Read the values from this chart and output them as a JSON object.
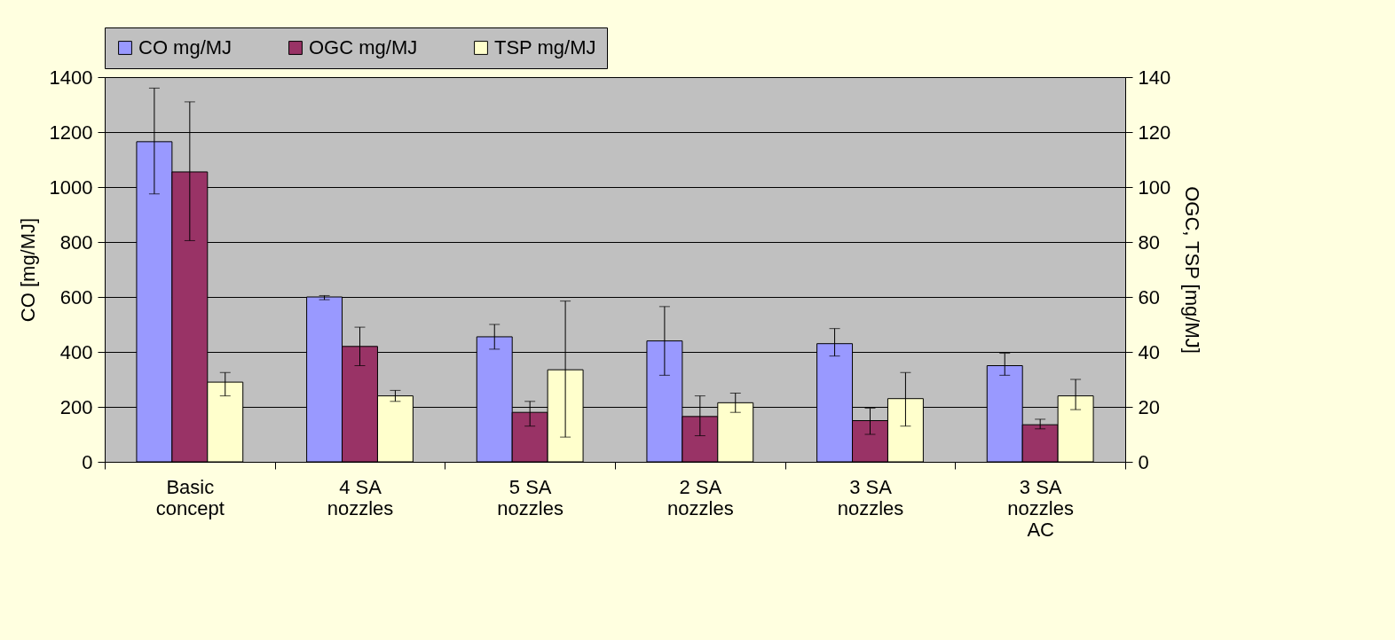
{
  "chart_data": {
    "type": "bar",
    "categories": [
      "Basic concept",
      "4 SA nozzles",
      "5 SA nozzles",
      "2 SA nozzles",
      "3 SA nozzles",
      "3 SA nozzles AC"
    ],
    "series": [
      {
        "name": "CO mg/MJ",
        "color": "#9999ff",
        "values": [
          1165,
          600,
          455,
          440,
          430,
          350
        ],
        "errors": [
          [
            975,
            1360
          ],
          [
            590,
            605
          ],
          [
            410,
            500
          ],
          [
            315,
            565
          ],
          [
            385,
            485
          ],
          [
            315,
            395
          ]
        ]
      },
      {
        "name": "OGC mg/MJ",
        "color": "#993366",
        "axis": "y2",
        "values": [
          105.5,
          42,
          18,
          16.5,
          15,
          13.5
        ],
        "errors": [
          [
            80.5,
            131
          ],
          [
            35,
            49
          ],
          [
            13,
            22
          ],
          [
            9.5,
            24
          ],
          [
            10,
            19.5
          ],
          [
            12,
            15.5
          ]
        ]
      },
      {
        "name": "TSP mg/MJ",
        "color": "#ffffcc",
        "axis": "y2",
        "values": [
          29,
          24,
          33.5,
          21.5,
          23,
          24
        ],
        "errors": [
          [
            24,
            32.5
          ],
          [
            22,
            26
          ],
          [
            9,
            58.5
          ],
          [
            18,
            25
          ],
          [
            13,
            32.5
          ],
          [
            19,
            30
          ]
        ]
      }
    ],
    "ylabel": "CO [mg/MJ]",
    "y2label": "OGC, TSP [mg/MJ]",
    "ylim": [
      0,
      1400
    ],
    "yticks": [
      0,
      200,
      400,
      600,
      800,
      1000,
      1200,
      1400
    ],
    "y2lim": [
      0,
      140
    ],
    "y2ticks": [
      0,
      20,
      40,
      60,
      80,
      100,
      120,
      140
    ],
    "grid": "y",
    "legend": "top"
  }
}
